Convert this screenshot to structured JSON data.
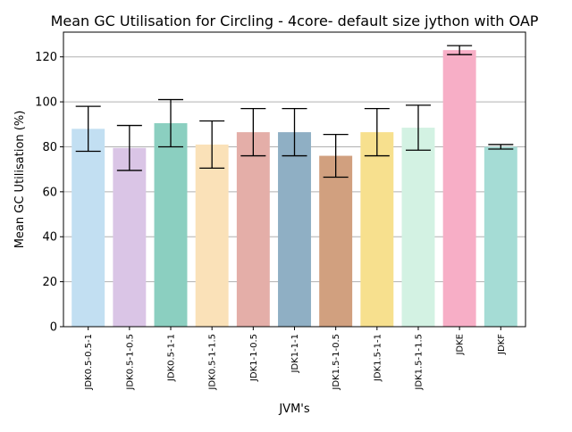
{
  "chart_data": {
    "type": "bar",
    "title": "Mean GC Utilisation for Circling - 4core- default size jython with OAP",
    "xlabel": "JVM's",
    "ylabel": "Mean GC Utilisation (%)",
    "ylim": [
      0,
      131
    ],
    "yticks": [
      0,
      20,
      40,
      60,
      80,
      100,
      120
    ],
    "grid": "horizontal",
    "categories": [
      "JDK0.5-0.5-1",
      "JDK0.5-1-0.5",
      "JDK0.5-1-1",
      "JDK0.5-1-1.5",
      "JDK1-1-0.5",
      "JDK1-1-1",
      "JDK1.5-1-0.5",
      "JDK1.5-1-1",
      "JDK1.5-1-1.5",
      "JDKE",
      "JDKF"
    ],
    "values": [
      88,
      79.5,
      90.5,
      81,
      86.5,
      86.5,
      76,
      86.5,
      88.5,
      123,
      80
    ],
    "errors": [
      10,
      10,
      10.5,
      10.5,
      10.5,
      10.5,
      9.5,
      10.5,
      10,
      2,
      1
    ],
    "colors": [
      "#c2dff2",
      "#dac5e6",
      "#8bcfc0",
      "#fae1b8",
      "#e4aea8",
      "#8fafc4",
      "#d1a07f",
      "#f7e08e",
      "#d3f2e3",
      "#f7aec6",
      "#a5dcd5"
    ]
  }
}
